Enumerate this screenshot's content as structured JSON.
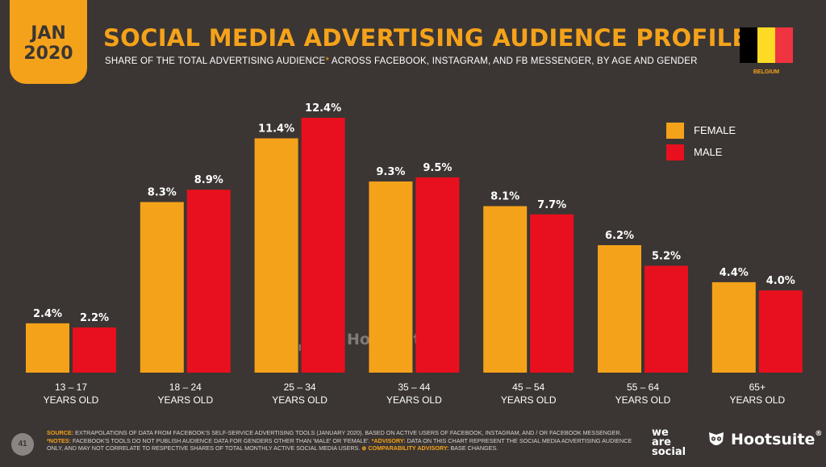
{
  "header": {
    "date_month": "JAN",
    "date_year": "2020",
    "title": "SOCIAL MEDIA ADVERTISING AUDIENCE PROFILE",
    "subtitle_pre": "SHARE OF THE TOTAL ADVERTISING AUDIENCE",
    "subtitle_star": "*",
    "subtitle_post": " ACROSS FACEBOOK, INSTAGRAM, AND FB MESSENGER, BY AGE AND GENDER"
  },
  "country": {
    "name": "BELGIUM",
    "flag_colors": [
      "#000000",
      "#fdda24",
      "#ef3340"
    ]
  },
  "colors": {
    "background": "#3b3633",
    "accent": "#f5a21b",
    "female": "#f5a21b",
    "male": "#e8101e"
  },
  "chart_data": {
    "type": "bar",
    "categories": [
      [
        "13 – 17",
        "YEARS OLD"
      ],
      [
        "18 – 24",
        "YEARS OLD"
      ],
      [
        "25 – 34",
        "YEARS OLD"
      ],
      [
        "35 – 44",
        "YEARS OLD"
      ],
      [
        "45 – 54",
        "YEARS OLD"
      ],
      [
        "55 – 64",
        "YEARS OLD"
      ],
      [
        "65+",
        "YEARS OLD"
      ]
    ],
    "series": [
      {
        "name": "FEMALE",
        "color": "#f5a21b",
        "values": [
          2.4,
          8.3,
          11.4,
          9.3,
          8.1,
          6.2,
          4.4
        ],
        "labels": [
          "2.4%",
          "8.3%",
          "11.4%",
          "9.3%",
          "8.1%",
          "6.2%",
          "4.4%"
        ]
      },
      {
        "name": "MALE",
        "color": "#e8101e",
        "values": [
          2.2,
          8.9,
          12.4,
          9.5,
          7.7,
          5.2,
          4.0
        ],
        "labels": [
          "2.2%",
          "8.9%",
          "12.4%",
          "9.5%",
          "7.7%",
          "5.2%",
          "4.0%"
        ]
      }
    ],
    "unit": "%",
    "ylim": [
      0,
      12.4
    ],
    "grid": false,
    "legend_position": "top-right"
  },
  "watermark": {
    "brand_a": "we are social",
    "brand_b": "Hootsuite"
  },
  "footer": {
    "page_number": "41",
    "source_label": "SOURCE:",
    "source_text": " EXTRAPOLATIONS OF DATA FROM FACEBOOK'S SELF-SERVICE ADVERTISING TOOLS (JANUARY 2020). BASED ON ACTIVE USERS OF FACEBOOK, INSTAGRAM, AND / OR FACEBOOK MESSENGER. ",
    "notes_label": "*NOTES:",
    "notes_text": " FACEBOOK'S TOOLS DO NOT PUBLISH AUDIENCE DATA FOR GENDERS OTHER THAN 'MALE' OR 'FEMALE'. ",
    "advisory_label": "*ADVISORY:",
    "advisory_text": " DATA ON THIS CHART REPRESENT THE SOCIAL MEDIA ADVERTISING AUDIENCE ONLY, AND MAY NOT CORRELATE TO RESPECTIVE SHARES OF TOTAL MONTHLY ACTIVE SOCIAL MEDIA USERS. ",
    "comparability_label": "⊕ COMPARABILITY ADVISORY:",
    "comparability_text": " BASE CHANGES.",
    "brand_was_line1": "we",
    "brand_was_line2": "are",
    "brand_was_line3": "social",
    "brand_hootsuite": "Hootsuite",
    "brand_hootsuite_mark": "®"
  }
}
